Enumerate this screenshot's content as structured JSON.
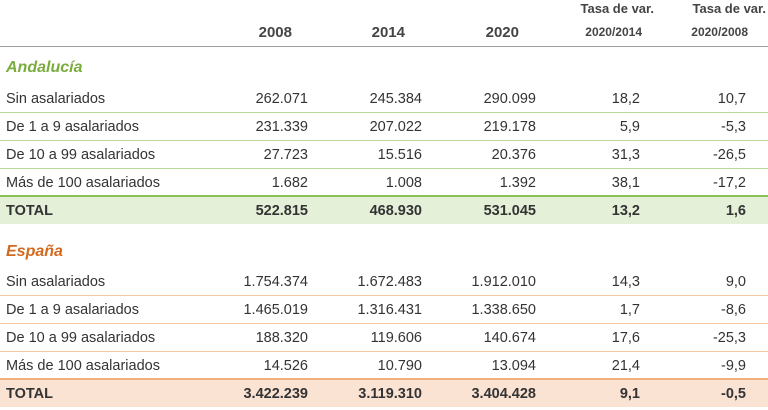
{
  "headers": {
    "col2008": "2008",
    "col2014": "2014",
    "col2020": "2020",
    "var_label_a": "Tasa de var.",
    "var_label_b": "Tasa de var.",
    "var_sub_a": "2020/2014",
    "var_sub_b": "2020/2008"
  },
  "sections": [
    {
      "name": "Andalucía",
      "rows": [
        {
          "label": "Sin asalariados",
          "v2008": "262.071",
          "v2014": "245.384",
          "v2020": "290.099",
          "var1": "18,2",
          "var2": "10,7"
        },
        {
          "label": "De 1 a 9 asalariados",
          "v2008": "231.339",
          "v2014": "207.022",
          "v2020": "219.178",
          "var1": "5,9",
          "var2": "-5,3"
        },
        {
          "label": "De 10 a 99  asalariados",
          "v2008": "27.723",
          "v2014": "15.516",
          "v2020": "20.376",
          "var1": "31,3",
          "var2": "-26,5"
        },
        {
          "label": "Más de 100 asalariados",
          "v2008": "1.682",
          "v2014": "1.008",
          "v2020": "1.392",
          "var1": "38,1",
          "var2": "-17,2"
        }
      ],
      "total": {
        "label": "TOTAL",
        "v2008": "522.815",
        "v2014": "468.930",
        "v2020": "531.045",
        "var1": "13,2",
        "var2": "1,6"
      }
    },
    {
      "name": "España",
      "rows": [
        {
          "label": "Sin asalariados",
          "v2008": "1.754.374",
          "v2014": "1.672.483",
          "v2020": "1.912.010",
          "var1": "14,3",
          "var2": "9,0"
        },
        {
          "label": "De 1 a 9 asalariados",
          "v2008": "1.465.019",
          "v2014": "1.316.431",
          "v2020": "1.338.650",
          "var1": "1,7",
          "var2": "-8,6"
        },
        {
          "label": "De 10 a 99  asalariados",
          "v2008": "188.320",
          "v2014": "119.606",
          "v2020": "140.674",
          "var1": "17,6",
          "var2": "-25,3"
        },
        {
          "label": "Más de 100 asalariados",
          "v2008": "14.526",
          "v2014": "10.790",
          "v2020": "13.094",
          "var1": "21,4",
          "var2": "-9,9"
        }
      ],
      "total": {
        "label": "TOTAL",
        "v2008": "3.422.239",
        "v2014": "3.119.310",
        "v2020": "3.404.428",
        "var1": "9,1",
        "var2": "-0,5"
      }
    }
  ]
}
